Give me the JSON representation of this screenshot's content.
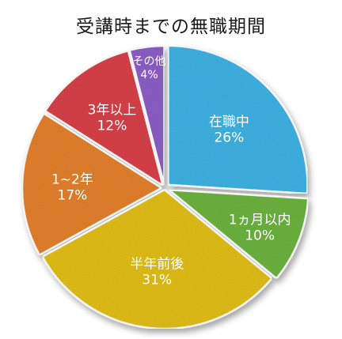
{
  "chart_data": {
    "type": "pie",
    "title": "受講時までの無職期間",
    "slices": [
      {
        "label": "在職中",
        "value_label": "26%",
        "value": 26,
        "color": "#3fb2e3"
      },
      {
        "label": "1ヵ月以内",
        "value_label": "10%",
        "value": 10,
        "color": "#6cb33f"
      },
      {
        "label": "半年前後",
        "value_label": "31%",
        "value": 31,
        "color": "#e1be1f"
      },
      {
        "label": "1~2年",
        "value_label": "17%",
        "value": 17,
        "color": "#e3812d"
      },
      {
        "label": "3年以上",
        "value_label": "12%",
        "value": 12,
        "color": "#d8434a"
      },
      {
        "label": "その他",
        "value_label": "4%",
        "value": 4,
        "color": "#8d5fc6"
      }
    ]
  }
}
